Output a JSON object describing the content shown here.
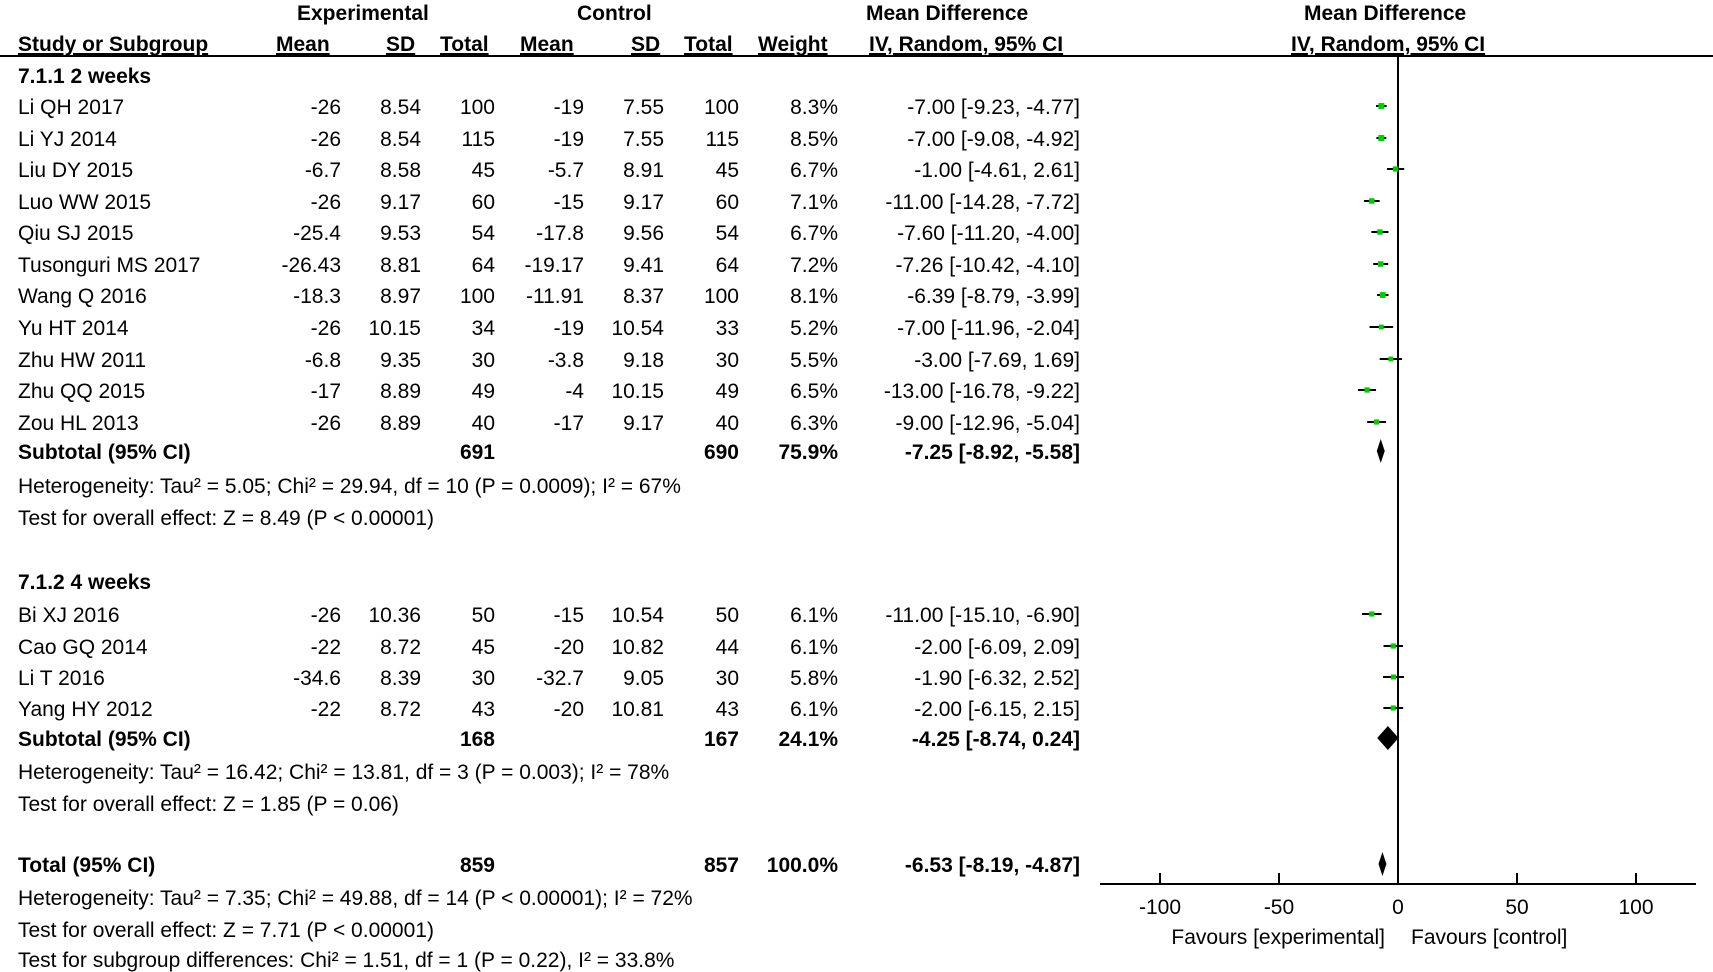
{
  "header": {
    "group1": "Experimental",
    "group2": "Control",
    "md_title": "Mean Difference",
    "md_method": "IV, Random, 95% CI",
    "plot_title": "Mean Difference",
    "plot_method": "IV, Random, 95% CI",
    "col_study": "Study or Subgroup",
    "col_mean1": "Mean",
    "col_sd1": "SD",
    "col_total1": "Total",
    "col_mean2": "Mean",
    "col_sd2": "SD",
    "col_total2": "Total",
    "col_weight": "Weight"
  },
  "subgroups": [
    {
      "title": "7.1.1 2 weeks",
      "studies": [
        {
          "name": "Li QH 2017",
          "m1": "-26",
          "sd1": "8.54",
          "n1": "100",
          "m2": "-19",
          "sd2": "7.55",
          "n2": "100",
          "w": "8.3%",
          "ci": "-7.00 [-9.23, -4.77]"
        },
        {
          "name": "Li YJ 2014",
          "m1": "-26",
          "sd1": "8.54",
          "n1": "115",
          "m2": "-19",
          "sd2": "7.55",
          "n2": "115",
          "w": "8.5%",
          "ci": "-7.00 [-9.08, -4.92]"
        },
        {
          "name": "Liu DY 2015",
          "m1": "-6.7",
          "sd1": "8.58",
          "n1": "45",
          "m2": "-5.7",
          "sd2": "8.91",
          "n2": "45",
          "w": "6.7%",
          "ci": "-1.00 [-4.61, 2.61]"
        },
        {
          "name": "Luo WW 2015",
          "m1": "-26",
          "sd1": "9.17",
          "n1": "60",
          "m2": "-15",
          "sd2": "9.17",
          "n2": "60",
          "w": "7.1%",
          "ci": "-11.00 [-14.28, -7.72]"
        },
        {
          "name": "Qiu SJ 2015",
          "m1": "-25.4",
          "sd1": "9.53",
          "n1": "54",
          "m2": "-17.8",
          "sd2": "9.56",
          "n2": "54",
          "w": "6.7%",
          "ci": "-7.60 [-11.20, -4.00]"
        },
        {
          "name": "Tusonguri MS 2017",
          "m1": "-26.43",
          "sd1": "8.81",
          "n1": "64",
          "m2": "-19.17",
          "sd2": "9.41",
          "n2": "64",
          "w": "7.2%",
          "ci": "-7.26 [-10.42, -4.10]"
        },
        {
          "name": "Wang Q 2016",
          "m1": "-18.3",
          "sd1": "8.97",
          "n1": "100",
          "m2": "-11.91",
          "sd2": "8.37",
          "n2": "100",
          "w": "8.1%",
          "ci": "-6.39 [-8.79, -3.99]"
        },
        {
          "name": "Yu HT 2014",
          "m1": "-26",
          "sd1": "10.15",
          "n1": "34",
          "m2": "-19",
          "sd2": "10.54",
          "n2": "33",
          "w": "5.2%",
          "ci": "-7.00 [-11.96, -2.04]"
        },
        {
          "name": "Zhu HW 2011",
          "m1": "-6.8",
          "sd1": "9.35",
          "n1": "30",
          "m2": "-3.8",
          "sd2": "9.18",
          "n2": "30",
          "w": "5.5%",
          "ci": "-3.00 [-7.69, 1.69]"
        },
        {
          "name": "Zhu QQ 2015",
          "m1": "-17",
          "sd1": "8.89",
          "n1": "49",
          "m2": "-4",
          "sd2": "10.15",
          "n2": "49",
          "w": "6.5%",
          "ci": "-13.00 [-16.78, -9.22]"
        },
        {
          "name": "Zou HL 2013",
          "m1": "-26",
          "sd1": "8.89",
          "n1": "40",
          "m2": "-17",
          "sd2": "9.17",
          "n2": "40",
          "w": "6.3%",
          "ci": "-9.00 [-12.96, -5.04]"
        }
      ],
      "subtotal": {
        "label": "Subtotal (95% CI)",
        "n1": "691",
        "n2": "690",
        "w": "75.9%",
        "ci": "-7.25 [-8.92, -5.58]"
      },
      "heterogeneity": "Heterogeneity: Tau² = 5.05; Chi² = 29.94, df = 10 (P = 0.0009); I² = 67%",
      "overall": "Test for overall effect: Z = 8.49 (P < 0.00001)"
    },
    {
      "title": "7.1.2 4 weeks",
      "studies": [
        {
          "name": "Bi XJ 2016",
          "m1": "-26",
          "sd1": "10.36",
          "n1": "50",
          "m2": "-15",
          "sd2": "10.54",
          "n2": "50",
          "w": "6.1%",
          "ci": "-11.00 [-15.10, -6.90]"
        },
        {
          "name": "Cao GQ 2014",
          "m1": "-22",
          "sd1": "8.72",
          "n1": "45",
          "m2": "-20",
          "sd2": "10.82",
          "n2": "44",
          "w": "6.1%",
          "ci": "-2.00 [-6.09, 2.09]"
        },
        {
          "name": "Li T 2016",
          "m1": "-34.6",
          "sd1": "8.39",
          "n1": "30",
          "m2": "-32.7",
          "sd2": "9.05",
          "n2": "30",
          "w": "5.8%",
          "ci": "-1.90 [-6.32, 2.52]"
        },
        {
          "name": "Yang HY 2012",
          "m1": "-22",
          "sd1": "8.72",
          "n1": "43",
          "m2": "-20",
          "sd2": "10.81",
          "n2": "43",
          "w": "6.1%",
          "ci": "-2.00 [-6.15, 2.15]"
        }
      ],
      "subtotal": {
        "label": "Subtotal (95% CI)",
        "n1": "168",
        "n2": "167",
        "w": "24.1%",
        "ci": "-4.25 [-8.74, 0.24]"
      },
      "heterogeneity": "Heterogeneity: Tau² = 16.42; Chi² = 13.81, df = 3 (P = 0.003); I² = 78%",
      "overall": "Test for overall effect: Z = 1.85 (P = 0.06)"
    }
  ],
  "total": {
    "label": "Total (95% CI)",
    "n1": "859",
    "n2": "857",
    "w": "100.0%",
    "ci": "-6.53 [-8.19, -4.87]"
  },
  "footer": {
    "heterogeneity": "Heterogeneity: Tau² = 7.35; Chi² = 49.88, df = 14 (P < 0.00001); I² = 72%",
    "overall": "Test for overall effect: Z = 7.71 (P < 0.00001)",
    "subgroup_diff": "Test for subgroup differences: Chi² = 1.51, df = 1 (P = 0.22), I² = 33.8%"
  },
  "colors": {
    "study_marker": "#00cc00",
    "line": "#000000",
    "diamond": "#000000"
  },
  "chart_data": {
    "type": "forest",
    "xlim": [
      -100,
      100
    ],
    "xticks": [
      "-100",
      "-50",
      "0",
      "50",
      "100"
    ],
    "xtick_values": [
      -100,
      -50,
      0,
      50,
      100
    ],
    "favours_left": "Favours [experimental]",
    "favours_right": "Favours [control]",
    "studies_sg1": [
      {
        "md": -7.0,
        "lo": -9.23,
        "hi": -4.77,
        "w": 8.3
      },
      {
        "md": -7.0,
        "lo": -9.08,
        "hi": -4.92,
        "w": 8.5
      },
      {
        "md": -1.0,
        "lo": -4.61,
        "hi": 2.61,
        "w": 6.7
      },
      {
        "md": -11.0,
        "lo": -14.28,
        "hi": -7.72,
        "w": 7.1
      },
      {
        "md": -7.6,
        "lo": -11.2,
        "hi": -4.0,
        "w": 6.7
      },
      {
        "md": -7.26,
        "lo": -10.42,
        "hi": -4.1,
        "w": 7.2
      },
      {
        "md": -6.39,
        "lo": -8.79,
        "hi": -3.99,
        "w": 8.1
      },
      {
        "md": -7.0,
        "lo": -11.96,
        "hi": -2.04,
        "w": 5.2
      },
      {
        "md": -3.0,
        "lo": -7.69,
        "hi": 1.69,
        "w": 5.5
      },
      {
        "md": -13.0,
        "lo": -16.78,
        "hi": -9.22,
        "w": 6.5
      },
      {
        "md": -9.0,
        "lo": -12.96,
        "hi": -5.04,
        "w": 6.3
      }
    ],
    "subtotal_sg1": {
      "md": -7.25,
      "lo": -8.92,
      "hi": -5.58
    },
    "studies_sg2": [
      {
        "md": -11.0,
        "lo": -15.1,
        "hi": -6.9,
        "w": 6.1
      },
      {
        "md": -2.0,
        "lo": -6.09,
        "hi": 2.09,
        "w": 6.1
      },
      {
        "md": -1.9,
        "lo": -6.32,
        "hi": 2.52,
        "w": 5.8
      },
      {
        "md": -2.0,
        "lo": -6.15,
        "hi": 2.15,
        "w": 6.1
      }
    ],
    "subtotal_sg2": {
      "md": -4.25,
      "lo": -8.74,
      "hi": 0.24
    },
    "total": {
      "md": -6.53,
      "lo": -8.19,
      "hi": -4.87
    }
  }
}
